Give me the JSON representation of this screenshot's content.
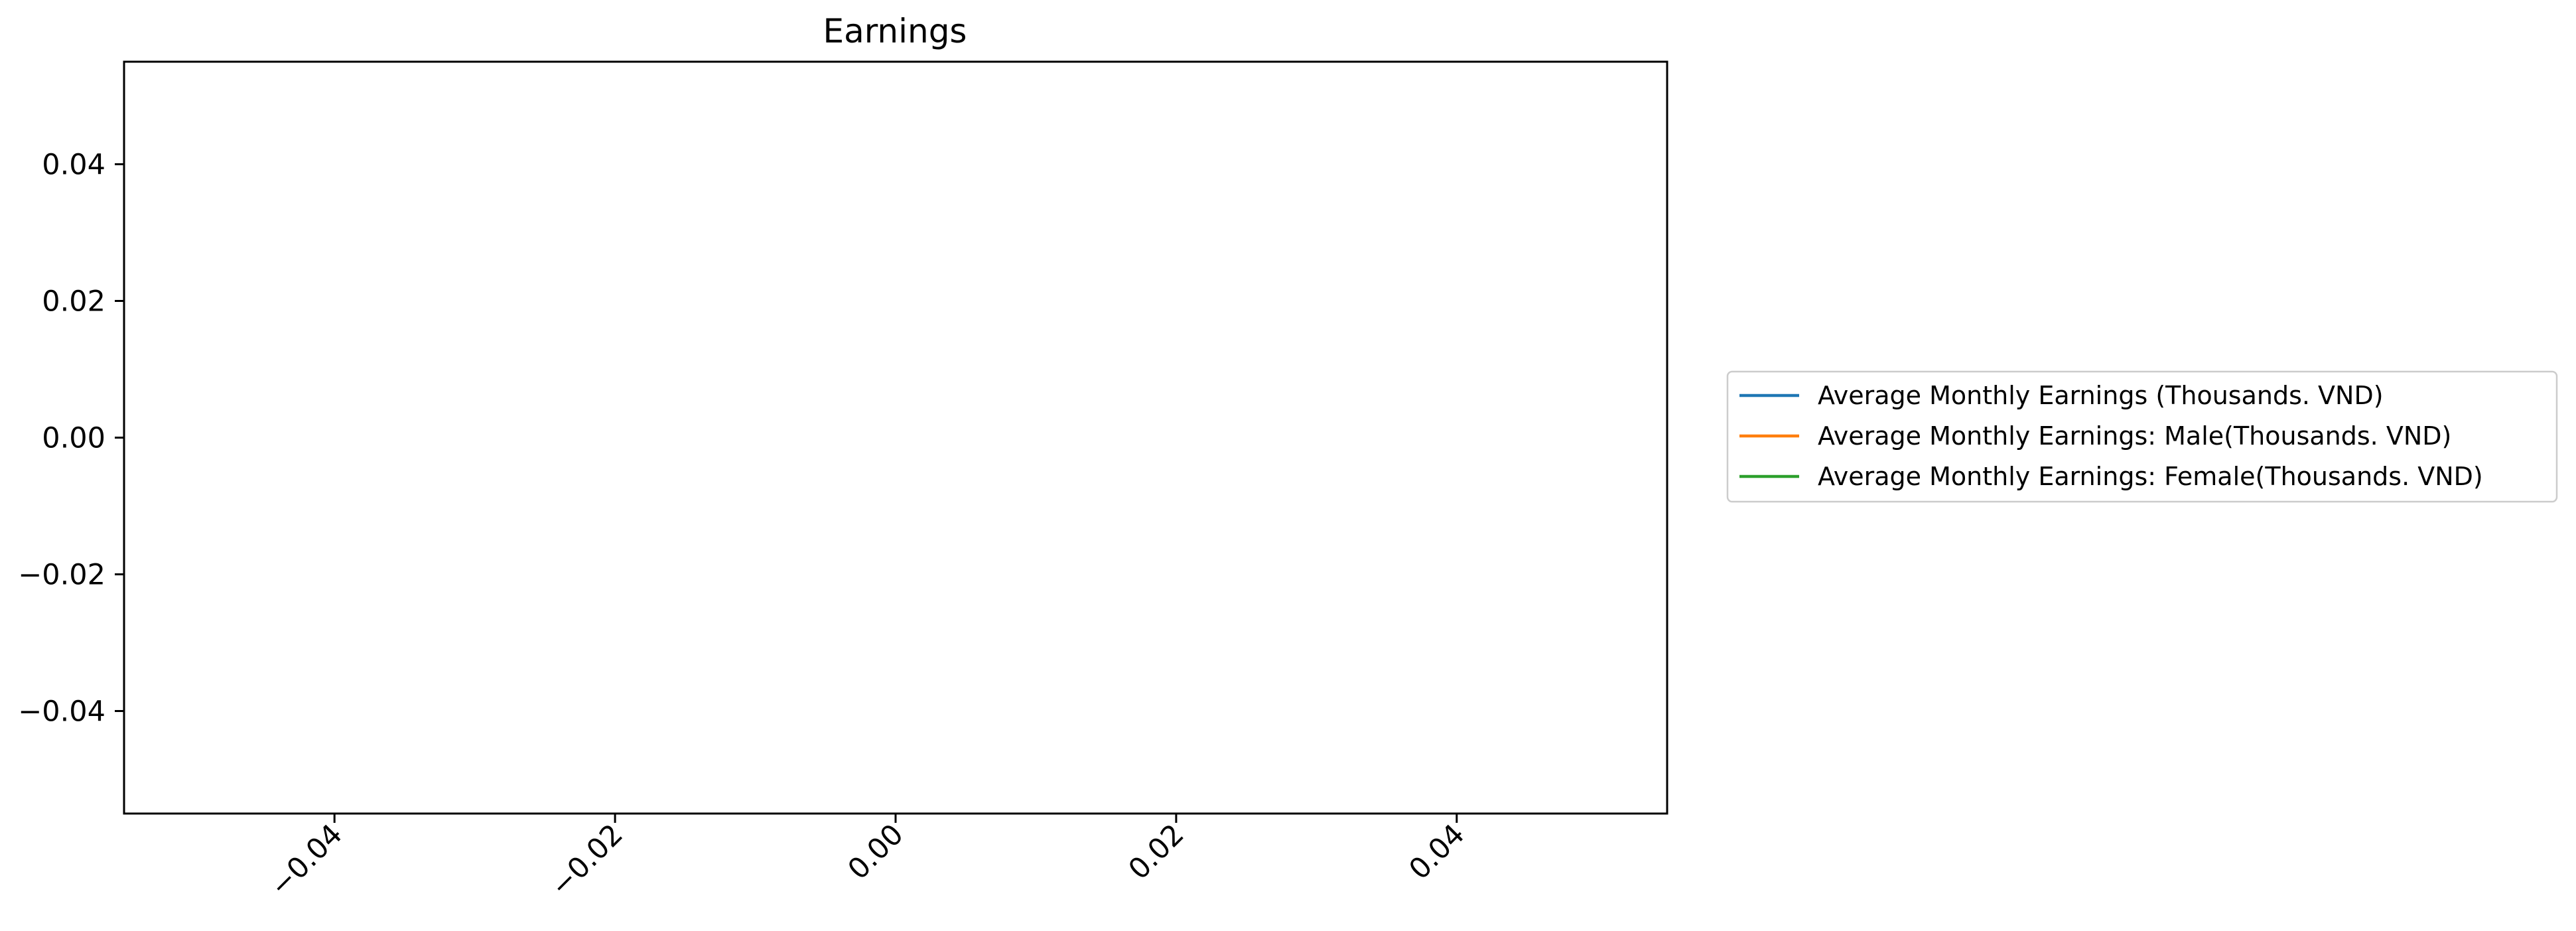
{
  "chart_data": {
    "type": "line",
    "title": "Earnings",
    "xlabel": "",
    "ylabel": "",
    "xlim": [
      -0.055,
      0.055
    ],
    "ylim": [
      -0.055,
      0.055
    ],
    "x_ticks": [
      -0.04,
      -0.02,
      0.0,
      0.02,
      0.04
    ],
    "y_ticks": [
      -0.04,
      -0.02,
      0.0,
      0.02,
      0.04
    ],
    "x_tick_labels": [
      "−0.04",
      "−0.02",
      "0.00",
      "0.02",
      "0.04"
    ],
    "y_tick_labels": [
      "−0.04",
      "−0.02",
      "0.00",
      "0.02",
      "0.04"
    ],
    "x_tick_rotation_deg": 45,
    "grid": false,
    "legend_placement": "outside-right",
    "series": [
      {
        "name": "Average Monthly Earnings (Thousands. VND)",
        "color": "#1f77b4",
        "x": [],
        "y": []
      },
      {
        "name": "Average Monthly Earnings: Male(Thousands. VND)",
        "color": "#ff7f0e",
        "x": [],
        "y": []
      },
      {
        "name": "Average Monthly Earnings: Female(Thousands. VND)",
        "color": "#2ca02c",
        "x": [],
        "y": []
      }
    ]
  }
}
